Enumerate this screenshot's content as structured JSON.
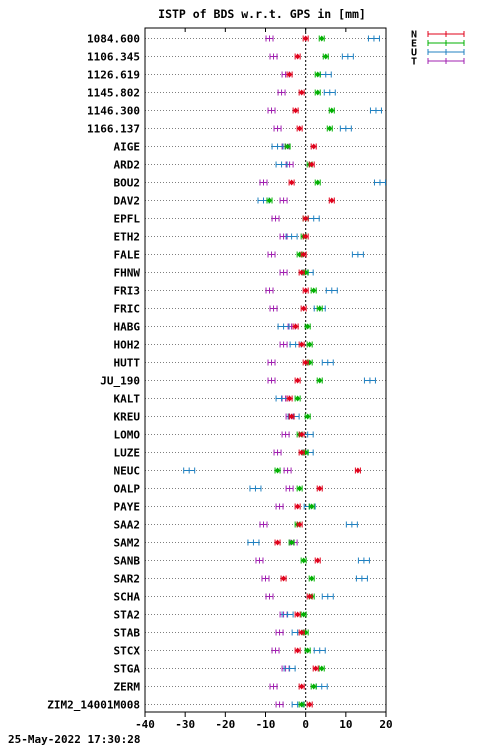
{
  "chart_data": {
    "type": "scatter",
    "title": "ISTP of BDS w.r.t. GPS in [mm]",
    "footer_timestamp": "25-May-2022 17:30:28",
    "xlim": [
      -40,
      20
    ],
    "x_ticks": [
      -40,
      -30,
      -20,
      -10,
      0,
      10,
      20
    ],
    "grid": "dotted-horizontal",
    "legend_position": "top-right",
    "series": [
      {
        "name": "N",
        "color": "#e0001a"
      },
      {
        "name": "E",
        "color": "#00b000"
      },
      {
        "name": "U",
        "color": "#2080c0"
      },
      {
        "name": "T",
        "color": "#a020b0"
      }
    ],
    "stations": [
      {
        "label": "1084.600",
        "N": 0,
        "E": 4,
        "U": 17,
        "T": -9
      },
      {
        "label": "1106.345",
        "N": -2,
        "E": 5,
        "U": 10.5,
        "T": -8
      },
      {
        "label": "1126.619",
        "N": -4,
        "E": 3,
        "U": 5,
        "T": -5
      },
      {
        "label": "1145.802",
        "N": -1,
        "E": 3,
        "U": 6,
        "T": -6
      },
      {
        "label": "1146.300",
        "N": -2.5,
        "E": 6.5,
        "U": 17.5,
        "T": -8.5
      },
      {
        "label": "1166.137",
        "N": -1.5,
        "E": 6,
        "U": 10,
        "T": -7
      },
      {
        "label": "AIGE",
        "N": 2,
        "E": -4.5,
        "U": -7,
        "T": -5
      },
      {
        "label": "ARD2",
        "N": 1.5,
        "E": 1,
        "U": -6,
        "T": -4
      },
      {
        "label": "BOU2",
        "N": -3.5,
        "E": 3,
        "U": 18.5,
        "T": -10.5
      },
      {
        "label": "DAV2",
        "N": 6.5,
        "E": -9,
        "U": -10.5,
        "T": -5.5
      },
      {
        "label": "EPFL",
        "N": 0,
        "E": 0,
        "U": 2,
        "T": -7.5
      },
      {
        "label": "ETH2",
        "N": 0,
        "E": -0.5,
        "U": -3.5,
        "T": -5.5
      },
      {
        "label": "FALE",
        "N": -0.5,
        "E": -1.5,
        "U": 13,
        "T": -8.5
      },
      {
        "label": "FHNW",
        "N": -1,
        "E": 0,
        "U": 0.5,
        "T": -5.5
      },
      {
        "label": "FRI3",
        "N": 0,
        "E": 2,
        "U": 6.5,
        "T": -9
      },
      {
        "label": "FRIC",
        "N": -0.5,
        "E": 3.5,
        "U": 3.5,
        "T": -8
      },
      {
        "label": "HABG",
        "N": -2.5,
        "E": 0.5,
        "U": -5.5,
        "T": -3.5
      },
      {
        "label": "HOH2",
        "N": -1,
        "E": 1,
        "U": -2.5,
        "T": -5.5
      },
      {
        "label": "HUTT",
        "N": 0,
        "E": 1,
        "U": 5.5,
        "T": -8.5
      },
      {
        "label": "JU_190",
        "N": -2,
        "E": 3.5,
        "U": 16,
        "T": -8.5
      },
      {
        "label": "KALT",
        "N": -4,
        "E": -2,
        "U": -6,
        "T": -5
      },
      {
        "label": "KREU",
        "N": -3.5,
        "E": 0.5,
        "U": -3,
        "T": -4
      },
      {
        "label": "LOMO",
        "N": -1,
        "E": -1.5,
        "U": 0.5,
        "T": -5
      },
      {
        "label": "LUZE",
        "N": -1,
        "E": 0,
        "U": 0.5,
        "T": -7
      },
      {
        "label": "NEUC",
        "N": 13,
        "E": -7,
        "U": -29,
        "T": -4.5
      },
      {
        "label": "OALP",
        "N": 3.5,
        "E": -1.5,
        "U": -12.5,
        "T": -4
      },
      {
        "label": "PAYE",
        "N": -2,
        "E": 1.5,
        "U": 1,
        "T": -6.5
      },
      {
        "label": "SAA2",
        "N": -1.5,
        "E": -2,
        "U": 11.5,
        "T": -10.5
      },
      {
        "label": "SAM2",
        "N": -7,
        "E": -3.5,
        "U": -13,
        "T": -3
      },
      {
        "label": "SANB",
        "N": 3,
        "E": -0.5,
        "U": 14.5,
        "T": -11.5
      },
      {
        "label": "SAR2",
        "N": -5.5,
        "E": 1.5,
        "U": 14,
        "T": -10
      },
      {
        "label": "SCHA",
        "N": 1,
        "E": 1.5,
        "U": 5.5,
        "T": -9
      },
      {
        "label": "STA2",
        "N": -2,
        "E": -0.5,
        "U": -4.5,
        "T": -5.5
      },
      {
        "label": "STAB",
        "N": -1,
        "E": 0,
        "U": -2,
        "T": -6.5
      },
      {
        "label": "STCX",
        "N": -2,
        "E": 0.5,
        "U": 3.5,
        "T": -7.5
      },
      {
        "label": "STGA",
        "N": 2.5,
        "E": 4,
        "U": -4,
        "T": -5
      },
      {
        "label": "ZERM",
        "N": -1,
        "E": 2,
        "U": 4,
        "T": -8
      },
      {
        "label": "ZIM2_14001M008",
        "N": 1,
        "E": -1,
        "U": -2,
        "T": -6.5
      }
    ]
  }
}
